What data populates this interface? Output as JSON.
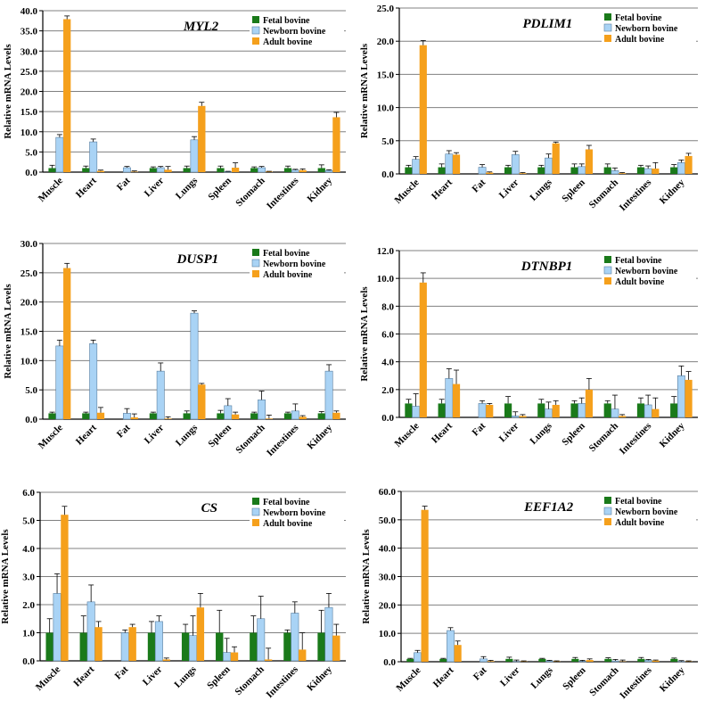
{
  "colors": {
    "fetal": "#1a7a1a",
    "newborn": "#a9d3f5",
    "adult": "#f5a01c",
    "grid": "#808080",
    "axis": "#000000"
  },
  "chart_data": [
    {
      "type": "bar",
      "title": "MYL2",
      "ylabel": "Relative mRNA Levels",
      "xlabel": "",
      "legend_position": "top-right",
      "grid": true,
      "ylim": [
        0,
        40
      ],
      "yticks": [
        "0.0",
        "5.0",
        "10.0",
        "15.0",
        "20.0",
        "25.0",
        "30.0",
        "35.0",
        "40.0"
      ],
      "categories": [
        "Muscle",
        "Heart",
        "Fat",
        "Liver",
        "Lungs",
        "Spleen",
        "Stomach",
        "Intestines",
        "Kidney"
      ],
      "series": [
        {
          "name": "Fetal bovine",
          "values": [
            1.0,
            1.0,
            0,
            1.0,
            1.0,
            1.0,
            1.0,
            1.0,
            1.0
          ],
          "errors": [
            0.7,
            0.5,
            0,
            0.3,
            0.5,
            0.5,
            0.3,
            0.5,
            0.8
          ]
        },
        {
          "name": "Newborn bovine",
          "values": [
            8.6,
            7.5,
            1.1,
            1.1,
            8.0,
            0.1,
            1.1,
            0.5,
            0.4
          ],
          "errors": [
            0.7,
            0.7,
            0.3,
            0.3,
            0.8,
            0.1,
            0.3,
            0.2,
            0.2
          ]
        },
        {
          "name": "Adult bovine",
          "values": [
            37.9,
            0.3,
            0.1,
            0.6,
            16.4,
            1.1,
            0.1,
            0.5,
            13.6
          ],
          "errors": [
            0.8,
            0.2,
            0.2,
            0.8,
            0.9,
            1.2,
            0.1,
            0.3,
            1.2
          ]
        }
      ]
    },
    {
      "type": "bar",
      "title": "PDLIM1",
      "ylabel": "Relative mRNA Levels",
      "xlabel": "",
      "legend_position": "top-right",
      "grid": true,
      "ylim": [
        0,
        25
      ],
      "yticks": [
        "0.0",
        "5.0",
        "10.0",
        "15.0",
        "20.0",
        "25.0"
      ],
      "categories": [
        "Muscle",
        "Heart",
        "Fat",
        "Liver",
        "Lungs",
        "Spleen",
        "Stomach",
        "Intestines",
        "Kidney"
      ],
      "series": [
        {
          "name": "Fetal bovine",
          "values": [
            1.0,
            1.0,
            0,
            1.0,
            1.0,
            1.0,
            1.0,
            1.0,
            1.0
          ],
          "errors": [
            0.3,
            0.5,
            0,
            0.3,
            0.3,
            0.5,
            0.5,
            0.3,
            0.4
          ]
        },
        {
          "name": "Newborn bovine",
          "values": [
            2.2,
            3.0,
            1.0,
            2.9,
            2.4,
            1.1,
            0.5,
            0.8,
            1.7
          ],
          "errors": [
            0.4,
            0.5,
            0.4,
            0.5,
            0.6,
            0.4,
            0.4,
            0.4,
            0.4
          ]
        },
        {
          "name": "Adult bovine",
          "values": [
            19.4,
            2.9,
            0.2,
            0.1,
            4.6,
            3.7,
            0.1,
            0.8,
            2.7
          ],
          "errors": [
            0.7,
            0.3,
            0.1,
            0.1,
            0.2,
            0.6,
            0.1,
            0.9,
            0.4
          ]
        }
      ]
    },
    {
      "type": "bar",
      "title": "DUSP1",
      "ylabel": "Relative mRNA Levels",
      "xlabel": "",
      "legend_position": "top-right",
      "grid": true,
      "ylim": [
        0,
        30
      ],
      "yticks": [
        "0.0",
        "5.0",
        "10.0",
        "15.0",
        "20.0",
        "25.0",
        "30.0"
      ],
      "categories": [
        "Muscle",
        "Heart",
        "Fat",
        "Liver",
        "Lungs",
        "Spleen",
        "Stomach",
        "Intestines",
        "Kidney"
      ],
      "series": [
        {
          "name": "Fetal bovine",
          "values": [
            1.0,
            1.0,
            0,
            1.0,
            1.0,
            1.0,
            1.0,
            1.0,
            1.0
          ],
          "errors": [
            0.2,
            0.2,
            0,
            0.2,
            0.4,
            0.5,
            0.2,
            0.2,
            0.3
          ]
        },
        {
          "name": "Newborn bovine",
          "values": [
            12.5,
            12.9,
            1.0,
            8.2,
            18.1,
            2.3,
            3.3,
            1.4,
            8.2
          ],
          "errors": [
            1.0,
            0.6,
            0.8,
            1.4,
            0.4,
            1.2,
            1.5,
            1.2,
            1.1
          ]
        },
        {
          "name": "Adult bovine",
          "values": [
            25.8,
            1.1,
            0.3,
            0.1,
            5.9,
            0.8,
            0.1,
            0.4,
            1.1
          ],
          "errors": [
            0.8,
            0.9,
            0.6,
            0.3,
            0.2,
            0.4,
            0.6,
            0.2,
            0.3
          ]
        }
      ]
    },
    {
      "type": "bar",
      "title": "DTNBP1",
      "ylabel": "Relative mRNA Levels",
      "xlabel": "",
      "legend_position": "top-right",
      "grid": true,
      "ylim": [
        0,
        12
      ],
      "yticks": [
        "0.0",
        "2.0",
        "4.0",
        "6.0",
        "8.0",
        "10.0",
        "12.0"
      ],
      "categories": [
        "Muscle",
        "Heart",
        "Fat",
        "Liver",
        "Lungs",
        "Spleen",
        "Stomach",
        "Intestines",
        "Kidney"
      ],
      "series": [
        {
          "name": "Fetal bovine",
          "values": [
            1.0,
            1.0,
            0,
            1.0,
            1.0,
            1.0,
            1.0,
            1.0,
            1.0
          ],
          "errors": [
            0.3,
            0.3,
            0,
            0.5,
            0.3,
            0.2,
            0.2,
            0.4,
            0.5
          ]
        },
        {
          "name": "Newborn bovine",
          "values": [
            0.8,
            2.8,
            1.0,
            0.1,
            0.6,
            1.0,
            0.6,
            0.9,
            3.0
          ],
          "errors": [
            0.9,
            0.7,
            0.2,
            0.3,
            0.5,
            0.4,
            1.0,
            0.7,
            0.7
          ]
        },
        {
          "name": "Adult bovine",
          "values": [
            9.7,
            2.4,
            0.9,
            0.1,
            0.9,
            2.0,
            0.1,
            0.6,
            2.7
          ],
          "errors": [
            0.7,
            1.0,
            0.1,
            0.1,
            0.3,
            0.8,
            0.1,
            0.8,
            0.6
          ]
        }
      ]
    },
    {
      "type": "bar",
      "title": "CS",
      "ylabel": "Relative mRNA Levels",
      "xlabel": "",
      "legend_position": "top-right",
      "grid": true,
      "ylim": [
        0,
        6
      ],
      "yticks": [
        "0.0",
        "1.0",
        "2.0",
        "3.0",
        "4.0",
        "5.0",
        "6.0"
      ],
      "categories": [
        "Muscle",
        "Heart",
        "Fat",
        "Liver",
        "Lungs",
        "Spleen",
        "Stomach",
        "Intestines",
        "Kidney"
      ],
      "series": [
        {
          "name": "Fetal bovine",
          "values": [
            1.0,
            1.0,
            0,
            1.0,
            1.0,
            1.0,
            1.0,
            1.0,
            1.0
          ],
          "errors": [
            0.5,
            0.6,
            0,
            0.4,
            0.3,
            0.8,
            0.6,
            0.1,
            0.8
          ]
        },
        {
          "name": "Newborn bovine",
          "values": [
            2.4,
            2.1,
            1.0,
            1.4,
            0.9,
            0.3,
            1.5,
            1.7,
            1.9
          ],
          "errors": [
            0.7,
            0.6,
            0.1,
            0.2,
            0.7,
            0.5,
            0.8,
            0.4,
            0.5
          ]
        },
        {
          "name": "Adult bovine",
          "values": [
            5.2,
            1.2,
            1.2,
            0.05,
            1.9,
            0.3,
            0.05,
            0.4,
            0.9
          ],
          "errors": [
            0.3,
            0.2,
            0.1,
            0.05,
            0.5,
            0.2,
            0.4,
            0.6,
            0.4
          ]
        }
      ]
    },
    {
      "type": "bar",
      "title": "EEF1A2",
      "ylabel": "Relative mRNA Levels",
      "xlabel": "",
      "legend_position": "top-right",
      "grid": true,
      "ylim": [
        0,
        60
      ],
      "yticks": [
        "0.0",
        "10.0",
        "20.0",
        "30.0",
        "40.0",
        "50.0",
        "60.0"
      ],
      "categories": [
        "Muscle",
        "Heart",
        "Fat",
        "Liver",
        "Lungs",
        "Spleen",
        "Stomach",
        "Intestines",
        "Kidney"
      ],
      "series": [
        {
          "name": "Fetal bovine",
          "values": [
            1.0,
            1.0,
            0,
            1.0,
            1.0,
            1.0,
            1.0,
            1.0,
            1.0
          ],
          "errors": [
            0.2,
            0.2,
            0,
            0.6,
            0.2,
            0.5,
            0.4,
            0.5,
            0.3
          ]
        },
        {
          "name": "Newborn bovine",
          "values": [
            3.2,
            11.0,
            1.0,
            0.1,
            0.3,
            0.2,
            0.3,
            0.5,
            0.1
          ],
          "errors": [
            0.8,
            1.0,
            0.8,
            0.5,
            0.2,
            0.3,
            0.5,
            0.3,
            0.3
          ]
        },
        {
          "name": "Adult bovine",
          "values": [
            53.5,
            5.9,
            0.2,
            0.1,
            0.1,
            0.6,
            0.1,
            0.4,
            0.1
          ],
          "errors": [
            1.3,
            1.4,
            0.3,
            0.2,
            0.2,
            0.4,
            0.5,
            0.2,
            0.2
          ]
        }
      ]
    }
  ]
}
